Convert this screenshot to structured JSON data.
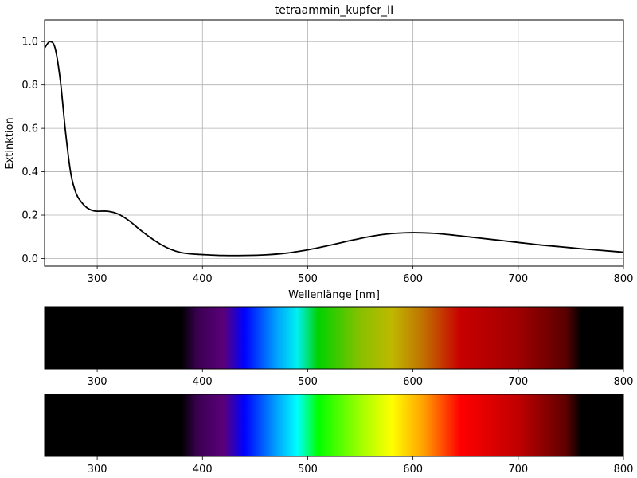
{
  "chart_data": [
    {
      "type": "line",
      "title": "tetraammin_kupfer_II",
      "xlabel": "Wellenlänge [nm]",
      "ylabel": "Extinktion",
      "xlim": [
        250,
        800
      ],
      "ylim": [
        -0.035,
        1.1
      ],
      "xticks": [
        300,
        400,
        500,
        600,
        700,
        800
      ],
      "yticks": [
        0.0,
        0.2,
        0.4,
        0.6,
        0.8,
        1.0
      ],
      "ytick_labels": [
        "0.0",
        "0.2",
        "0.4",
        "0.6",
        "0.8",
        "1.0"
      ],
      "grid": true,
      "series": [
        {
          "color": "#000000",
          "x": [
            250,
            255,
            260,
            265,
            270,
            275,
            280,
            285,
            290,
            295,
            300,
            310,
            320,
            330,
            340,
            350,
            360,
            370,
            380,
            390,
            400,
            420,
            440,
            460,
            480,
            500,
            520,
            540,
            560,
            580,
            600,
            620,
            640,
            660,
            680,
            700,
            720,
            740,
            760,
            780,
            800
          ],
          "y": [
            0.97,
            1.0,
            0.97,
            0.82,
            0.58,
            0.39,
            0.3,
            0.26,
            0.235,
            0.222,
            0.218,
            0.218,
            0.205,
            0.175,
            0.135,
            0.098,
            0.066,
            0.042,
            0.027,
            0.021,
            0.018,
            0.014,
            0.014,
            0.017,
            0.025,
            0.04,
            0.06,
            0.082,
            0.102,
            0.115,
            0.119,
            0.116,
            0.107,
            0.096,
            0.085,
            0.074,
            0.063,
            0.054,
            0.045,
            0.037,
            0.029
          ]
        }
      ]
    },
    {
      "type": "heatmap",
      "description": "spectrum strip (absorbed)",
      "xlim": [
        250,
        800
      ],
      "xticks": [
        300,
        400,
        500,
        600,
        700,
        800
      ],
      "stops": [
        {
          "nm": 250,
          "color": "#000000"
        },
        {
          "nm": 380,
          "color": "#000000"
        },
        {
          "nm": 395,
          "color": "#3a0050"
        },
        {
          "nm": 420,
          "color": "#5a007a"
        },
        {
          "nm": 440,
          "color": "#0000ff"
        },
        {
          "nm": 470,
          "color": "#00a0ff"
        },
        {
          "nm": 490,
          "color": "#00f0f0"
        },
        {
          "nm": 510,
          "color": "#00d200"
        },
        {
          "nm": 550,
          "color": "#88c000"
        },
        {
          "nm": 580,
          "color": "#c0b800"
        },
        {
          "nm": 610,
          "color": "#c07000"
        },
        {
          "nm": 645,
          "color": "#c80000"
        },
        {
          "nm": 700,
          "color": "#a00000"
        },
        {
          "nm": 745,
          "color": "#5a0000"
        },
        {
          "nm": 760,
          "color": "#000000"
        },
        {
          "nm": 800,
          "color": "#000000"
        }
      ]
    },
    {
      "type": "heatmap",
      "description": "spectrum strip (full)",
      "xlim": [
        250,
        800
      ],
      "xticks": [
        300,
        400,
        500,
        600,
        700,
        800
      ],
      "stops": [
        {
          "nm": 250,
          "color": "#000000"
        },
        {
          "nm": 380,
          "color": "#000000"
        },
        {
          "nm": 395,
          "color": "#3a0050"
        },
        {
          "nm": 420,
          "color": "#5a007a"
        },
        {
          "nm": 440,
          "color": "#0000ff"
        },
        {
          "nm": 470,
          "color": "#00a0ff"
        },
        {
          "nm": 490,
          "color": "#00ffff"
        },
        {
          "nm": 510,
          "color": "#00ff00"
        },
        {
          "nm": 550,
          "color": "#a0ff00"
        },
        {
          "nm": 580,
          "color": "#ffff00"
        },
        {
          "nm": 610,
          "color": "#ffa000"
        },
        {
          "nm": 645,
          "color": "#ff0000"
        },
        {
          "nm": 700,
          "color": "#c00000"
        },
        {
          "nm": 745,
          "color": "#600000"
        },
        {
          "nm": 760,
          "color": "#000000"
        },
        {
          "nm": 800,
          "color": "#000000"
        }
      ]
    }
  ]
}
